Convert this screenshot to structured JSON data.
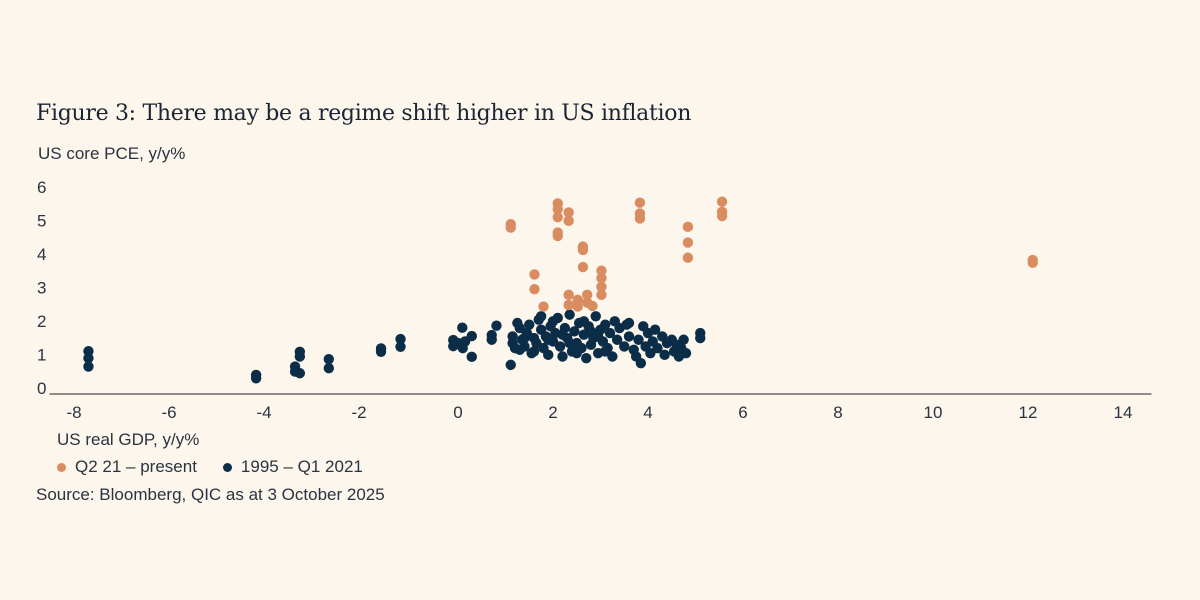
{
  "chart_data": {
    "type": "scatter",
    "title": "Figure 3: There may be a regime shift higher in US inflation",
    "xlabel": "US real GDP, y/y%",
    "ylabel": "US core PCE, y/y%",
    "xlim": [
      -8,
      14
    ],
    "ylim": [
      0,
      6
    ],
    "xticks": [
      "-8",
      "-6",
      "-4",
      "-2",
      "0",
      "2",
      "4",
      "6",
      "8",
      "10",
      "12",
      "14"
    ],
    "yticks": [
      "0",
      "1",
      "2",
      "3",
      "4",
      "5",
      "6"
    ],
    "grid": false,
    "legend_placement": "bottom-left",
    "series": [
      {
        "name": "Q2 21 – present",
        "color": "#d98c5f",
        "points": [
          [
            1.11,
            4.85
          ],
          [
            1.11,
            4.95
          ],
          [
            2.1,
            5.57
          ],
          [
            2.1,
            5.4
          ],
          [
            2.1,
            5.16
          ],
          [
            2.1,
            4.7
          ],
          [
            2.1,
            4.6
          ],
          [
            2.33,
            5.3
          ],
          [
            2.33,
            5.05
          ],
          [
            2.63,
            4.28
          ],
          [
            2.63,
            4.18
          ],
          [
            2.63,
            3.67
          ],
          [
            1.61,
            3.45
          ],
          [
            1.61,
            3.01
          ],
          [
            1.8,
            2.49
          ],
          [
            2.33,
            2.84
          ],
          [
            2.33,
            2.54
          ],
          [
            2.52,
            2.69
          ],
          [
            2.52,
            2.49
          ],
          [
            2.72,
            2.84
          ],
          [
            2.72,
            2.61
          ],
          [
            2.83,
            2.51
          ],
          [
            3.02,
            3.56
          ],
          [
            3.02,
            3.34
          ],
          [
            3.02,
            3.08
          ],
          [
            3.02,
            2.84
          ],
          [
            3.83,
            5.59
          ],
          [
            3.83,
            5.27
          ],
          [
            3.83,
            5.12
          ],
          [
            4.84,
            4.87
          ],
          [
            4.84,
            4.4
          ],
          [
            4.84,
            3.95
          ],
          [
            5.56,
            5.62
          ],
          [
            5.56,
            5.32
          ],
          [
            5.56,
            5.19
          ],
          [
            12.1,
            3.88
          ],
          [
            12.1,
            3.8
          ]
        ]
      },
      {
        "name": "1995 – Q1 2021",
        "color": "#0c2d48",
        "points": [
          [
            -7.78,
            1.16
          ],
          [
            -7.78,
            0.95
          ],
          [
            -7.78,
            0.7
          ],
          [
            -4.25,
            0.45
          ],
          [
            -4.25,
            0.35
          ],
          [
            -3.43,
            0.7
          ],
          [
            -3.43,
            0.55
          ],
          [
            -3.33,
            0.5
          ],
          [
            -3.33,
            1.14
          ],
          [
            -3.33,
            1.0
          ],
          [
            -2.72,
            0.92
          ],
          [
            -2.72,
            0.65
          ],
          [
            -1.62,
            1.24
          ],
          [
            -1.62,
            1.14
          ],
          [
            -1.21,
            1.52
          ],
          [
            -1.21,
            1.29
          ],
          [
            -0.1,
            1.49
          ],
          [
            -0.1,
            1.31
          ],
          [
            0.09,
            1.86
          ],
          [
            0.29,
            1.61
          ],
          [
            0.29,
            0.99
          ],
          [
            0.0,
            1.4
          ],
          [
            0.1,
            1.25
          ],
          [
            0.15,
            1.45
          ],
          [
            0.81,
            1.92
          ],
          [
            0.71,
            1.64
          ],
          [
            0.71,
            1.5
          ],
          [
            1.11,
            0.75
          ],
          [
            1.15,
            1.6
          ],
          [
            1.15,
            1.4
          ],
          [
            1.2,
            1.25
          ],
          [
            1.25,
            2.0
          ],
          [
            1.3,
            1.85
          ],
          [
            1.35,
            1.5
          ],
          [
            1.4,
            1.3
          ],
          [
            1.45,
            1.7
          ],
          [
            1.5,
            1.95
          ],
          [
            1.55,
            1.1
          ],
          [
            1.6,
            1.55
          ],
          [
            1.65,
            1.4
          ],
          [
            1.7,
            2.1
          ],
          [
            1.75,
            1.8
          ],
          [
            1.8,
            1.25
          ],
          [
            1.85,
            1.6
          ],
          [
            1.9,
            1.05
          ],
          [
            1.95,
            1.9
          ],
          [
            2.0,
            1.45
          ],
          [
            2.05,
            1.7
          ],
          [
            2.1,
            2.15
          ],
          [
            2.15,
            1.3
          ],
          [
            2.2,
            1.0
          ],
          [
            2.25,
            1.85
          ],
          [
            2.3,
            1.55
          ],
          [
            2.35,
            2.25
          ],
          [
            2.4,
            1.15
          ],
          [
            2.45,
            1.75
          ],
          [
            2.5,
            1.4
          ],
          [
            2.55,
            2.0
          ],
          [
            2.6,
            1.25
          ],
          [
            2.65,
            1.65
          ],
          [
            2.7,
            0.95
          ],
          [
            2.75,
            1.9
          ],
          [
            2.8,
            1.35
          ],
          [
            2.85,
            1.55
          ],
          [
            2.9,
            2.2
          ],
          [
            2.95,
            1.1
          ],
          [
            3.0,
            1.8
          ],
          [
            3.05,
            1.45
          ],
          [
            3.1,
            1.95
          ],
          [
            3.15,
            1.25
          ],
          [
            3.2,
            1.7
          ],
          [
            3.25,
            1.0
          ],
          [
            3.3,
            2.05
          ],
          [
            3.35,
            1.5
          ],
          [
            3.4,
            1.85
          ],
          [
            3.5,
            1.3
          ],
          [
            3.55,
            1.95
          ],
          [
            1.3,
            1.2
          ],
          [
            1.6,
            1.15
          ],
          [
            1.9,
            1.5
          ],
          [
            2.2,
            1.65
          ],
          [
            2.5,
            1.1
          ],
          [
            2.8,
            1.75
          ],
          [
            3.1,
            1.15
          ],
          [
            2.0,
            2.05
          ],
          [
            2.35,
            1.4
          ],
          [
            2.65,
            2.05
          ],
          [
            2.95,
            1.6
          ],
          [
            1.4,
            1.55
          ],
          [
            1.75,
            2.2
          ],
          [
            3.6,
            2.0
          ],
          [
            3.6,
            1.6
          ],
          [
            3.7,
            1.2
          ],
          [
            3.75,
            1.0
          ],
          [
            3.8,
            1.5
          ],
          [
            3.85,
            0.8
          ],
          [
            3.9,
            1.9
          ],
          [
            3.95,
            1.3
          ],
          [
            4.0,
            1.7
          ],
          [
            4.05,
            1.1
          ],
          [
            4.1,
            1.45
          ],
          [
            4.15,
            1.8
          ],
          [
            4.2,
            1.25
          ],
          [
            4.3,
            1.6
          ],
          [
            4.35,
            1.05
          ],
          [
            4.4,
            1.4
          ],
          [
            4.5,
            1.5
          ],
          [
            4.55,
            1.15
          ],
          [
            4.6,
            1.35
          ],
          [
            4.65,
            1.0
          ],
          [
            4.7,
            1.25
          ],
          [
            4.75,
            1.5
          ],
          [
            4.8,
            1.1
          ],
          [
            5.1,
            1.7
          ],
          [
            5.1,
            1.55
          ]
        ]
      }
    ],
    "source": "Source: Bloomberg, QIC as at 3 October 2025"
  }
}
